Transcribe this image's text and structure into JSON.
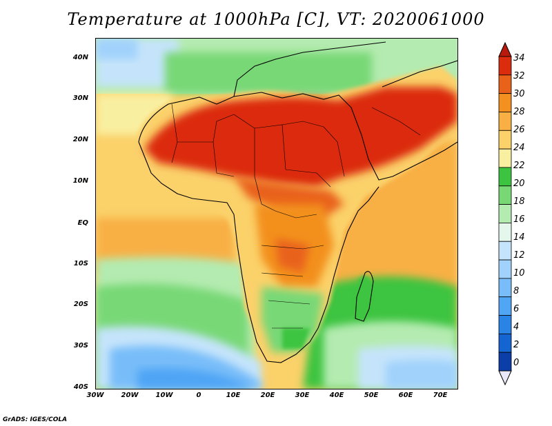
{
  "title": "Temperature at 1000hPa [C], VT: 2020061000",
  "credit": "GrADS: IGES/COLA",
  "map": {
    "lat_range": [
      -40,
      45
    ],
    "lon_range": [
      -30,
      75
    ],
    "lat_ticks": [
      "40N",
      "30N",
      "20N",
      "10N",
      "EQ",
      "10S",
      "20S",
      "30S",
      "40S"
    ],
    "lon_ticks": [
      "30W",
      "20W",
      "10W",
      "0",
      "10E",
      "20E",
      "30E",
      "40E",
      "50E",
      "60E",
      "70E"
    ]
  },
  "colorbar": {
    "labels": [
      "34",
      "32",
      "30",
      "28",
      "26",
      "24",
      "22",
      "20",
      "18",
      "16",
      "14",
      "12",
      "10",
      "8",
      "6",
      "4",
      "2",
      "0"
    ],
    "colors": [
      "#0d0d6b",
      "#0b3ea8",
      "#1464d2",
      "#2a84e6",
      "#50a5f5",
      "#78bdf9",
      "#a0d2fb",
      "#c5e4fb",
      "#e5f6ec",
      "#b4ebb0",
      "#78d876",
      "#3cc440",
      "#f9efa0",
      "#fbd16a",
      "#f8b044",
      "#f3901f",
      "#e9621a",
      "#db2c0e",
      "#b81a0c"
    ]
  }
}
